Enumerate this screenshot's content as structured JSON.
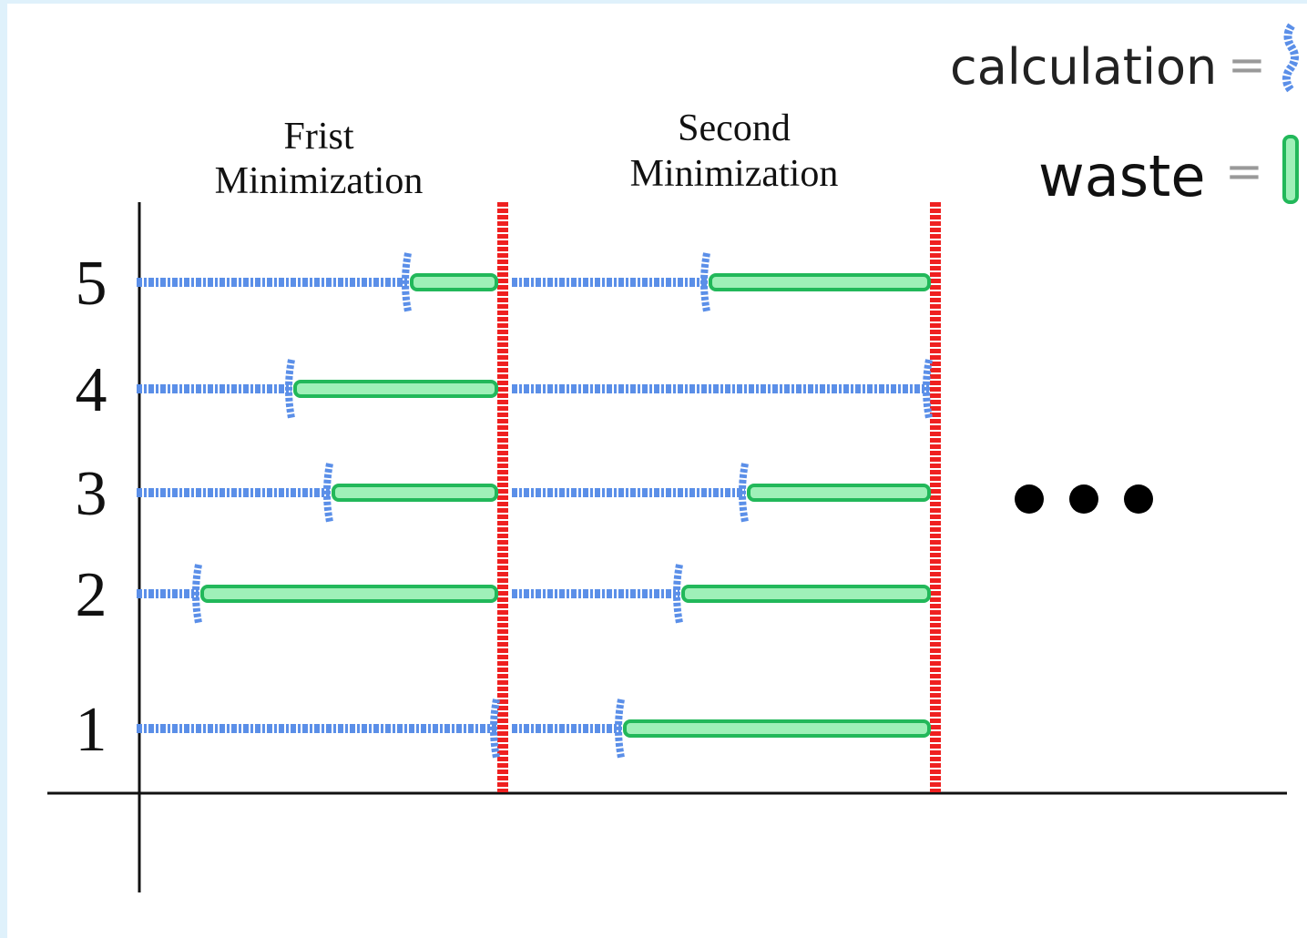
{
  "legend": [
    {
      "label": "calculation",
      "sign": "="
    },
    {
      "label": "waste",
      "sign": "="
    }
  ],
  "columns": [
    {
      "lines": [
        "Frist",
        "Minimization"
      ]
    },
    {
      "lines": [
        "Second",
        "Minimization"
      ]
    }
  ],
  "rows": [
    "5",
    "4",
    "3",
    "2",
    "1"
  ]
}
